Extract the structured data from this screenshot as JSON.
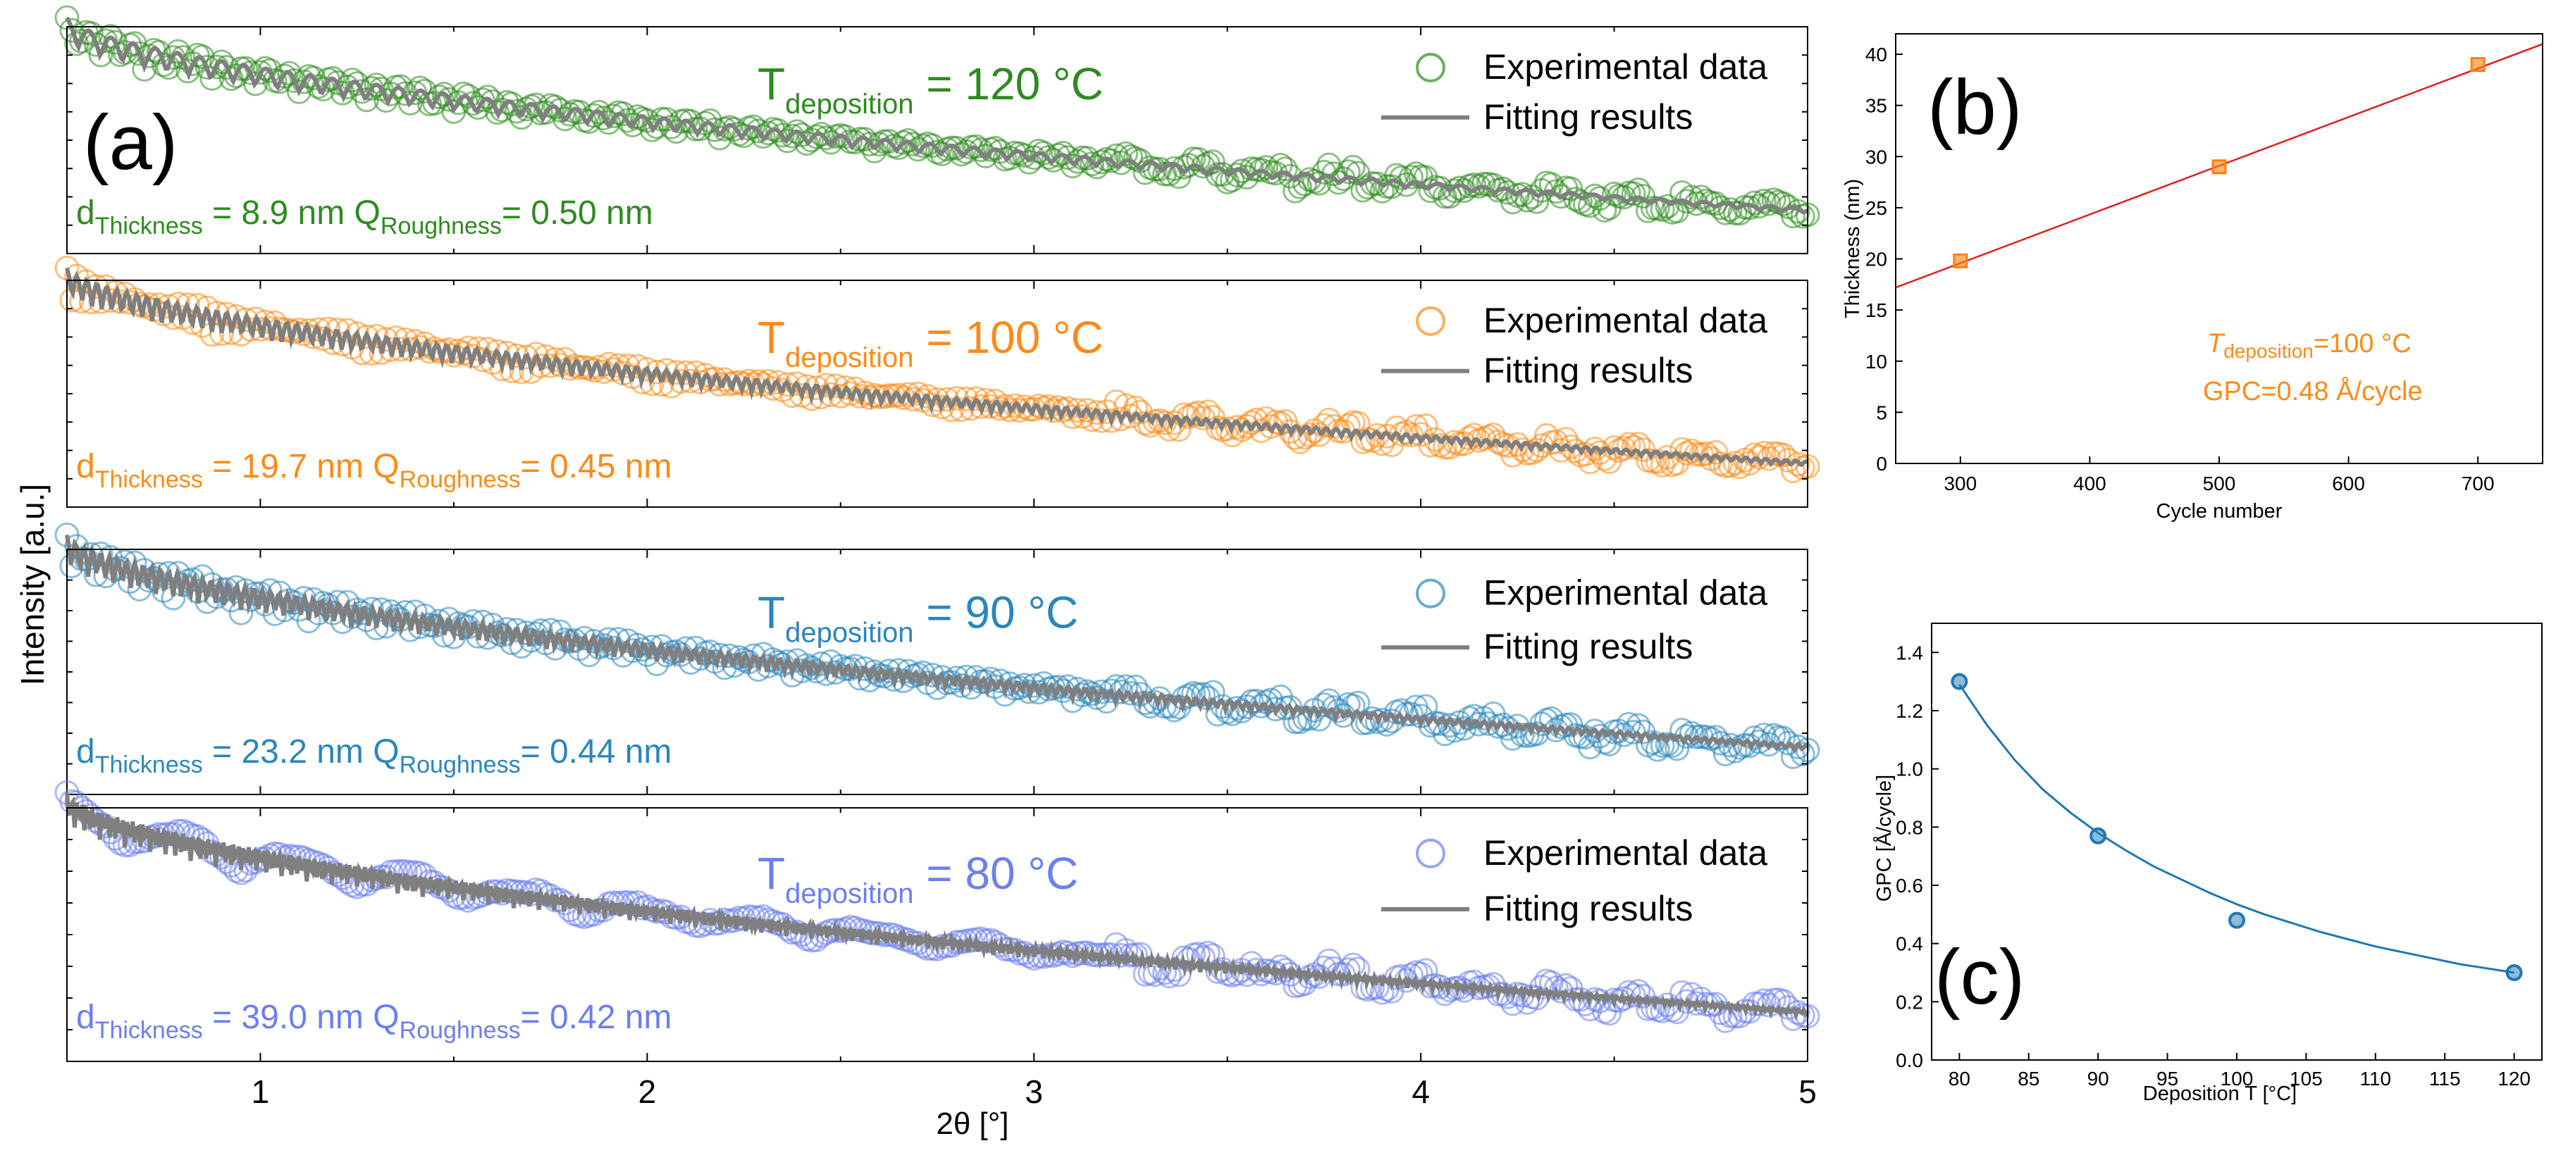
{
  "figure": {
    "panel_a_label": "(a)",
    "panel_b_label": "(b)",
    "panel_c_label": "(c)",
    "shared_ylabel": "Intensity [a.u.]",
    "shared_xlabel": "2θ [°]",
    "legend_experimental": "Experimental data",
    "legend_fitting": "Fitting results",
    "fit_line_color": "#7f7f7f"
  },
  "chart_data": [
    {
      "type": "scatter",
      "panel": "a",
      "description": "X-ray reflectivity curves, four stacked subplots, log intensity (arbitrary units) vs 2θ",
      "x_range": [
        0.5,
        5
      ],
      "x_ticks": [
        "1",
        "2",
        "3",
        "4",
        "5"
      ],
      "y_scale": "log",
      "y_tick_labels_shown": false,
      "grid": false,
      "subplots": [
        {
          "temp_prefix": "T",
          "temp_sub": "deposition",
          "temp_value": " = 120 °C",
          "d_prefix": "d",
          "d_sub": "Thickness",
          "d_value": " = 8.9 nm",
          "q_prefix": " Q",
          "q_sub": "Roughness",
          "q_value": "= 0.50 nm",
          "color": "#2e8b1f",
          "thickness_nm": 8.9,
          "roughness_nm": 0.5
        },
        {
          "temp_prefix": "T",
          "temp_sub": "deposition",
          "temp_value": " = 100 °C",
          "d_prefix": "d",
          "d_sub": "Thickness",
          "d_value": " = 19.7 nm",
          "q_prefix": " Q",
          "q_sub": "Roughness",
          "q_value": "= 0.45 nm",
          "color": "#ff8a16",
          "thickness_nm": 19.7,
          "roughness_nm": 0.45
        },
        {
          "temp_prefix": "T",
          "temp_sub": "deposition",
          "temp_value": " = 90 °C",
          "d_prefix": "d",
          "d_sub": "Thickness",
          "d_value": " = 23.2 nm",
          "q_prefix": " Q",
          "q_sub": "Roughness",
          "q_value": "= 0.44 nm",
          "color": "#2a86bd",
          "thickness_nm": 23.2,
          "roughness_nm": 0.44
        },
        {
          "temp_prefix": "T",
          "temp_sub": "deposition",
          "temp_value": " = 80 °C",
          "d_prefix": "d",
          "d_sub": "Thickness",
          "d_value": " = 39.0 nm",
          "q_prefix": " Q",
          "q_sub": "Roughness",
          "q_value": "= 0.42 nm",
          "color": "#6a7ff0",
          "thickness_nm": 39.0,
          "roughness_nm": 0.42
        }
      ]
    },
    {
      "type": "scatter",
      "panel": "b",
      "x": [
        300,
        500,
        700
      ],
      "y": [
        19.8,
        29.0,
        39.0
      ],
      "fit_line": {
        "x": [
          250,
          750
        ],
        "y": [
          17.2,
          41.0
        ],
        "color": "#e02020"
      },
      "marker_color": "#ff7f0e",
      "xlabel": "Cycle number",
      "ylabel": "Thickness (nm)",
      "xlim": [
        250,
        750
      ],
      "ylim": [
        0,
        42
      ],
      "x_ticks": [
        300,
        400,
        500,
        600,
        700
      ],
      "y_ticks": [
        0,
        5,
        10,
        15,
        20,
        25,
        30,
        35,
        40
      ],
      "annotation_t_prefix": "T",
      "annotation_t_sub": "deposition",
      "annotation_t_value": "=100 °C",
      "annotation_gpc": "GPC=0.48 Å/cycle",
      "annotation_color": "#ff8a16"
    },
    {
      "type": "scatter",
      "panel": "c",
      "x": [
        80,
        90,
        100,
        120
      ],
      "y": [
        1.3,
        0.77,
        0.48,
        0.3
      ],
      "fit_curve": {
        "x": [
          80,
          82,
          84,
          86,
          88,
          90,
          92,
          94,
          96,
          98,
          100,
          102,
          104,
          106,
          108,
          110,
          112,
          114,
          116,
          118,
          120
        ],
        "y": [
          1.29,
          1.15,
          1.03,
          0.93,
          0.85,
          0.78,
          0.72,
          0.665,
          0.62,
          0.575,
          0.535,
          0.5,
          0.47,
          0.44,
          0.415,
          0.39,
          0.37,
          0.35,
          0.33,
          0.315,
          0.3
        ]
      },
      "color": "#1f77b4",
      "xlabel": "Deposition T [°C]",
      "ylabel": "GPC [Å/cycle]",
      "xlim": [
        78,
        122
      ],
      "ylim": [
        0.0,
        1.5
      ],
      "x_ticks": [
        80,
        85,
        90,
        95,
        100,
        105,
        110,
        115,
        120
      ],
      "y_ticks": [
        "0.0",
        "0.2",
        "0.4",
        "0.6",
        "0.8",
        "1.0",
        "1.2",
        "1.4"
      ]
    }
  ]
}
